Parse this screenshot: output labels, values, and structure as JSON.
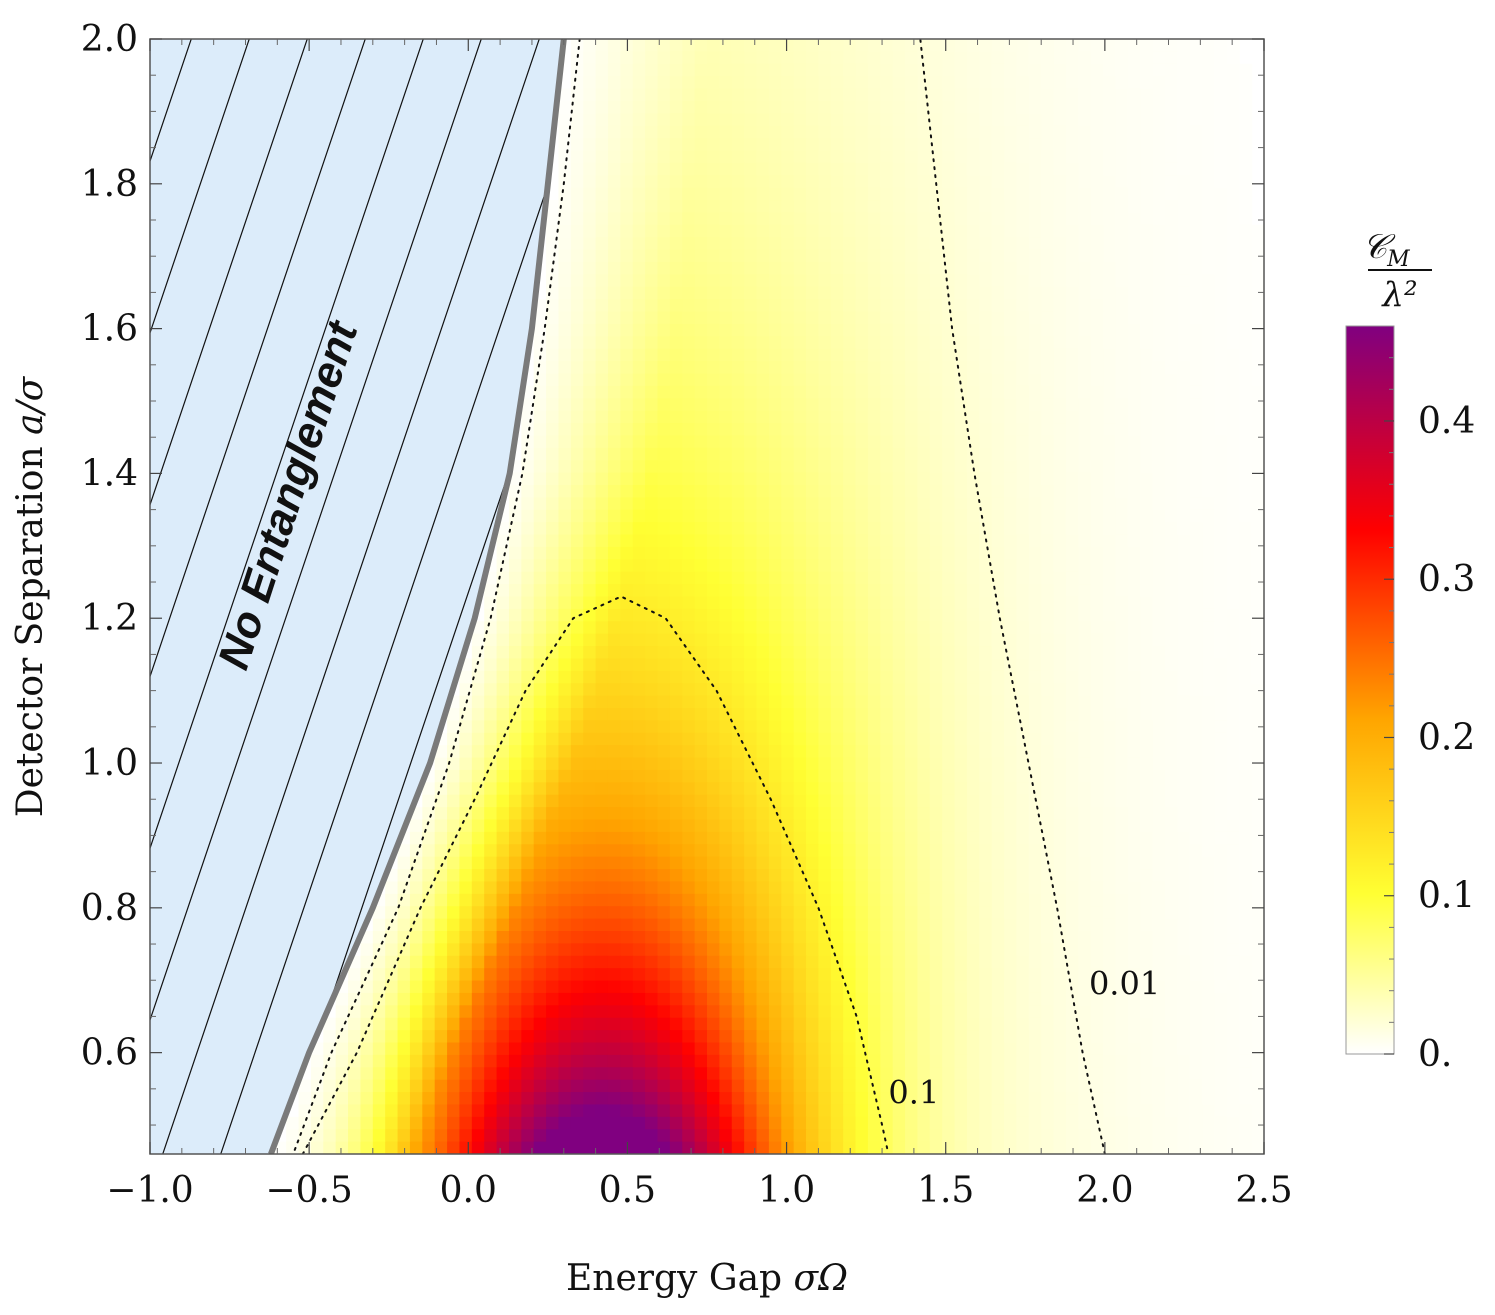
{
  "chart_data": {
    "type": "heatmap",
    "xlabel_text": "Energy Gap ",
    "xlabel_math": "σΩ",
    "ylabel_text": "Detector Separation ",
    "ylabel_math": "a/σ",
    "xlim": [
      -1.0,
      2.5
    ],
    "ylim": [
      0.46,
      2.0
    ],
    "x_ticks": [
      -1.0,
      -0.5,
      0.0,
      0.5,
      1.0,
      1.5,
      2.0,
      2.5
    ],
    "x_tick_labels": [
      "−1.0",
      "−0.5",
      "0.0",
      "0.5",
      "1.0",
      "1.5",
      "2.0",
      "2.5"
    ],
    "y_ticks": [
      0.6,
      0.8,
      1.0,
      1.2,
      1.4,
      1.6,
      1.8,
      2.0
    ],
    "y_tick_labels": [
      "0.6",
      "0.8",
      "1.0",
      "1.2",
      "1.4",
      "1.6",
      "1.8",
      "2.0"
    ],
    "colorbar": {
      "title_top": "𝒞",
      "title_top_sub": "M",
      "title_bottom": "λ²",
      "range": [
        0.0,
        0.46
      ],
      "ticks": [
        0.0,
        0.1,
        0.2,
        0.3,
        0.4
      ],
      "tick_labels": [
        "0.",
        "0.1",
        "0.2",
        "0.3",
        "0.4"
      ],
      "colors": [
        "#ffffff",
        "#ffff33",
        "#ffa500",
        "#ff0000",
        "#800080"
      ]
    },
    "region_label": "No Entanglement",
    "region_fill": "#dcecfa",
    "entanglement_boundary": [
      [
        -0.62,
        0.46
      ],
      [
        -0.5,
        0.6
      ],
      [
        -0.3,
        0.8
      ],
      [
        -0.12,
        1.0
      ],
      [
        0.02,
        1.2
      ],
      [
        0.13,
        1.4
      ],
      [
        0.2,
        1.6
      ],
      [
        0.25,
        1.8
      ],
      [
        0.3,
        2.0
      ]
    ],
    "contours": [
      {
        "level_label": "0.1",
        "points": [
          [
            -0.52,
            0.46
          ],
          [
            -0.35,
            0.6
          ],
          [
            -0.15,
            0.8
          ],
          [
            0.02,
            0.95
          ],
          [
            0.18,
            1.1
          ],
          [
            0.33,
            1.2
          ],
          [
            0.48,
            1.23
          ],
          [
            0.62,
            1.2
          ],
          [
            0.78,
            1.1
          ],
          [
            0.95,
            0.95
          ],
          [
            1.1,
            0.8
          ],
          [
            1.22,
            0.65
          ],
          [
            1.3,
            0.5
          ],
          [
            1.32,
            0.46
          ]
        ]
      },
      {
        "level_label": "0.01",
        "points": [
          [
            2.0,
            0.46
          ],
          [
            1.93,
            0.6
          ],
          [
            1.85,
            0.8
          ],
          [
            1.76,
            1.0
          ],
          [
            1.67,
            1.2
          ],
          [
            1.59,
            1.4
          ],
          [
            1.52,
            1.6
          ],
          [
            1.47,
            1.8
          ],
          [
            1.42,
            2.0
          ]
        ]
      },
      {
        "level_label": "",
        "points": [
          [
            0.35,
            2.0
          ],
          [
            0.3,
            1.8
          ],
          [
            0.24,
            1.6
          ],
          [
            0.17,
            1.4
          ],
          [
            0.07,
            1.2
          ],
          [
            -0.06,
            1.0
          ],
          [
            -0.22,
            0.8
          ],
          [
            -0.43,
            0.6
          ],
          [
            -0.55,
            0.46
          ]
        ]
      }
    ],
    "contour_label_positions": [
      [
        1.32,
        0.53
      ],
      [
        1.95,
        0.68
      ]
    ]
  }
}
